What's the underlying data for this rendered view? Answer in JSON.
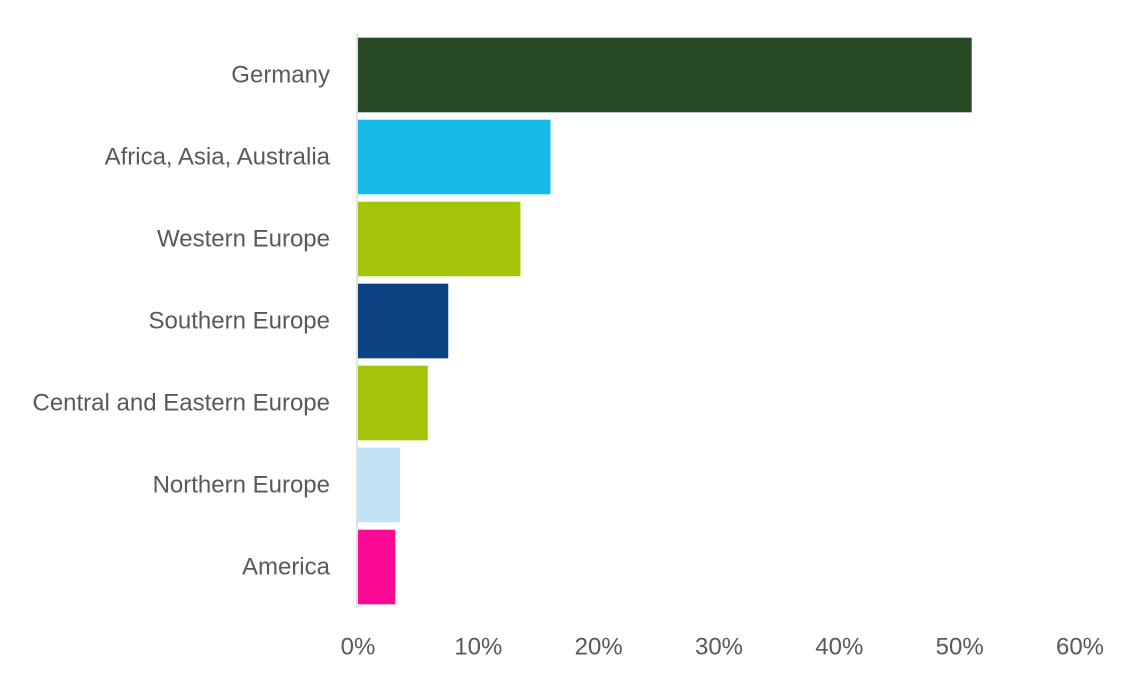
{
  "chart_data": {
    "type": "bar",
    "orientation": "horizontal",
    "title": "",
    "xlabel": "",
    "ylabel": "",
    "categories": [
      "Germany",
      "Africa, Asia, Australia",
      "Western Europe",
      "Southern Europe",
      "Central and Eastern Europe",
      "Northern Europe",
      "America"
    ],
    "values": [
      51,
      16,
      13.5,
      7.5,
      5.8,
      3.5,
      3.1
    ],
    "colors": [
      "#254A24",
      "#17BBE9",
      "#A4C40A",
      "#0B4382",
      "#A4C40A",
      "#C1E3F5",
      "#FB0A94"
    ],
    "xlim": [
      0,
      60
    ],
    "x_ticks": [
      0,
      10,
      20,
      30,
      40,
      50,
      60
    ],
    "x_tick_labels": [
      "0%",
      "10%",
      "20%",
      "30%",
      "40%",
      "50%",
      "60%"
    ],
    "grid": false,
    "legend": "none"
  }
}
